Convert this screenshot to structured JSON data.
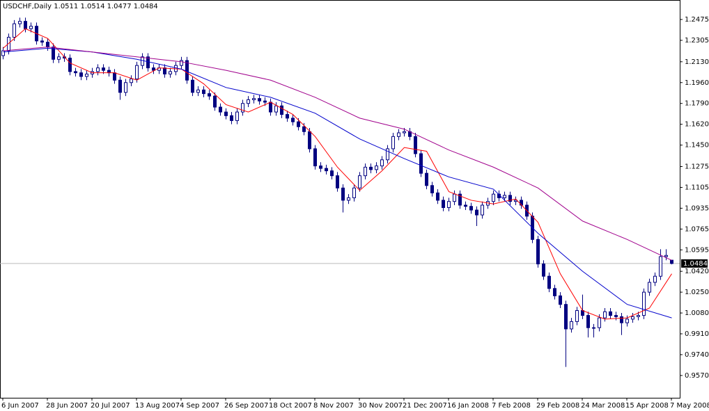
{
  "chart_data": {
    "type": "candlestick",
    "title": "USDCHF,Daily  1.0511 1.0514 1.0477 1.0484",
    "categories": [
      "6 Jun 2007",
      null,
      null,
      null,
      null,
      null,
      null,
      null,
      "28 Jun 2007",
      null,
      null,
      null,
      null,
      null,
      null,
      null,
      "20 Jul 2007",
      null,
      null,
      null,
      null,
      null,
      null,
      null,
      "13 Aug 2007",
      null,
      null,
      null,
      null,
      null,
      null,
      null,
      "4 Sep 2007",
      null,
      null,
      null,
      null,
      null,
      null,
      null,
      "26 Sep 2007",
      null,
      null,
      null,
      null,
      null,
      null,
      null,
      "18 Oct 2007",
      null,
      null,
      null,
      null,
      null,
      null,
      null,
      "8 Nov 2007",
      null,
      null,
      null,
      null,
      null,
      null,
      null,
      "30 Nov 2007",
      null,
      null,
      null,
      null,
      null,
      null,
      null,
      "21 Dec 2007",
      null,
      null,
      null,
      null,
      null,
      null,
      null,
      "16 Jan 2008",
      null,
      null,
      null,
      null,
      null,
      null,
      null,
      "7 Feb 2008",
      null,
      null,
      null,
      null,
      null,
      null,
      null,
      "29 Feb 2008",
      null,
      null,
      null,
      null,
      null,
      null,
      null,
      "24 Mar 2008",
      null,
      null,
      null,
      null,
      null,
      null,
      null,
      "15 Apr 2008",
      null,
      null,
      null,
      null,
      null,
      null,
      null,
      "7 May 2008"
    ],
    "open": [
      1.218,
      1.222,
      1.233,
      1.244,
      1.246,
      1.24,
      1.242,
      1.23,
      1.229,
      1.225,
      1.215,
      1.217,
      1.216,
      1.205,
      1.204,
      1.201,
      1.203,
      1.205,
      1.208,
      1.206,
      1.204,
      1.198,
      1.188,
      1.196,
      1.199,
      1.21,
      1.217,
      1.208,
      1.206,
      1.208,
      1.203,
      1.205,
      1.21,
      1.214,
      1.198,
      1.188,
      1.19,
      1.187,
      1.185,
      1.176,
      1.172,
      1.169,
      1.165,
      1.172,
      1.179,
      1.182,
      1.183,
      1.181,
      1.18,
      1.172,
      1.177,
      1.17,
      1.167,
      1.164,
      1.16,
      1.156,
      1.142,
      1.128,
      1.126,
      1.124,
      1.12,
      1.11,
      1.1,
      1.102,
      1.11,
      1.12,
      1.127,
      1.125,
      1.128,
      1.133,
      1.142,
      1.152,
      1.155,
      1.156,
      1.152,
      1.138,
      1.122,
      1.112,
      1.106,
      1.1,
      1.094,
      1.099,
      1.105,
      1.096,
      1.095,
      1.092,
      1.088,
      1.096,
      1.099,
      1.105,
      1.102,
      1.104,
      1.099,
      1.1,
      1.096,
      1.087,
      1.068,
      1.048,
      1.038,
      1.028,
      1.022,
      1.015,
      0.995,
      1.001,
      1.01,
      1.006,
      0.996,
      0.996,
      1.004,
      1.009,
      1.006,
      1.005,
      1.0,
      1.003,
      1.005,
      1.006,
      1.025,
      1.033,
      1.038,
      1.054,
      1.0511
    ],
    "high": [
      1.225,
      1.236,
      1.247,
      1.249,
      1.249,
      1.245,
      1.245,
      1.233,
      1.232,
      1.228,
      1.22,
      1.22,
      1.219,
      1.208,
      1.207,
      1.206,
      1.208,
      1.211,
      1.211,
      1.209,
      1.207,
      1.201,
      1.199,
      1.202,
      1.213,
      1.22,
      1.22,
      1.211,
      1.211,
      1.211,
      1.208,
      1.213,
      1.217,
      1.217,
      1.201,
      1.193,
      1.193,
      1.19,
      1.188,
      1.179,
      1.175,
      1.172,
      1.175,
      1.182,
      1.185,
      1.186,
      1.186,
      1.184,
      1.183,
      1.18,
      1.18,
      1.173,
      1.17,
      1.167,
      1.163,
      1.159,
      1.145,
      1.131,
      1.129,
      1.127,
      1.123,
      1.113,
      1.105,
      1.113,
      1.123,
      1.13,
      1.13,
      1.131,
      1.136,
      1.145,
      1.155,
      1.158,
      1.159,
      1.159,
      1.155,
      1.141,
      1.125,
      1.115,
      1.109,
      1.103,
      1.102,
      1.108,
      1.108,
      1.099,
      1.098,
      1.095,
      1.099,
      1.102,
      1.108,
      1.108,
      1.107,
      1.107,
      1.103,
      1.103,
      1.099,
      1.09,
      1.071,
      1.051,
      1.041,
      1.031,
      1.025,
      1.018,
      1.004,
      1.013,
      1.023,
      1.009,
      0.999,
      1.007,
      1.012,
      1.012,
      1.009,
      1.008,
      1.006,
      1.008,
      1.009,
      1.028,
      1.036,
      1.041,
      1.06,
      1.06,
      1.0514
    ],
    "low": [
      1.215,
      1.219,
      1.23,
      1.241,
      1.237,
      1.237,
      1.227,
      1.226,
      1.222,
      1.212,
      1.212,
      1.213,
      1.202,
      1.201,
      1.198,
      1.198,
      1.2,
      1.202,
      1.203,
      1.201,
      1.195,
      1.182,
      1.185,
      1.193,
      1.196,
      1.207,
      1.205,
      1.203,
      1.203,
      1.2,
      1.2,
      1.202,
      1.207,
      1.195,
      1.185,
      1.185,
      1.184,
      1.182,
      1.173,
      1.169,
      1.166,
      1.162,
      1.162,
      1.169,
      1.176,
      1.179,
      1.178,
      1.177,
      1.169,
      1.169,
      1.167,
      1.164,
      1.161,
      1.157,
      1.153,
      1.139,
      1.125,
      1.123,
      1.121,
      1.117,
      1.107,
      1.09,
      1.097,
      1.099,
      1.107,
      1.117,
      1.122,
      1.122,
      1.125,
      1.13,
      1.139,
      1.149,
      1.152,
      1.149,
      1.135,
      1.119,
      1.109,
      1.103,
      1.097,
      1.091,
      1.091,
      1.096,
      1.093,
      1.092,
      1.089,
      1.079,
      1.085,
      1.093,
      1.096,
      1.099,
      1.099,
      1.096,
      1.096,
      1.093,
      1.084,
      1.065,
      1.045,
      1.035,
      1.025,
      1.019,
      1.012,
      0.964,
      0.992,
      0.998,
      1.003,
      0.988,
      0.988,
      0.993,
      1.001,
      1.003,
      1.002,
      0.99,
      0.997,
      1.0,
      1.002,
      1.003,
      1.022,
      1.03,
      1.035,
      1.051,
      1.0477
    ],
    "close": [
      1.222,
      1.233,
      1.244,
      1.246,
      1.24,
      1.242,
      1.23,
      1.229,
      1.225,
      1.215,
      1.217,
      1.216,
      1.205,
      1.204,
      1.201,
      1.203,
      1.205,
      1.208,
      1.206,
      1.204,
      1.198,
      1.188,
      1.196,
      1.199,
      1.21,
      1.217,
      1.208,
      1.206,
      1.208,
      1.203,
      1.205,
      1.21,
      1.214,
      1.198,
      1.188,
      1.19,
      1.187,
      1.185,
      1.176,
      1.172,
      1.169,
      1.165,
      1.172,
      1.179,
      1.182,
      1.183,
      1.181,
      1.18,
      1.172,
      1.177,
      1.17,
      1.167,
      1.164,
      1.16,
      1.156,
      1.142,
      1.128,
      1.126,
      1.124,
      1.12,
      1.11,
      1.1,
      1.102,
      1.11,
      1.12,
      1.127,
      1.125,
      1.128,
      1.133,
      1.142,
      1.152,
      1.155,
      1.156,
      1.152,
      1.138,
      1.122,
      1.112,
      1.106,
      1.1,
      1.094,
      1.099,
      1.105,
      1.096,
      1.095,
      1.092,
      1.088,
      1.096,
      1.099,
      1.105,
      1.102,
      1.104,
      1.099,
      1.1,
      1.096,
      1.087,
      1.068,
      1.048,
      1.038,
      1.028,
      1.022,
      1.015,
      0.995,
      1.001,
      1.01,
      1.006,
      0.996,
      0.996,
      1.004,
      1.009,
      1.006,
      1.005,
      1.0,
      1.003,
      1.005,
      1.006,
      1.025,
      1.033,
      1.038,
      1.054,
      1.055,
      1.0484
    ],
    "color": "#000080",
    "lines": [
      {
        "color": "#ff0000",
        "x": [
          0,
          4,
          8,
          12,
          16,
          20,
          24,
          28,
          32,
          36,
          40,
          44,
          48,
          52,
          56,
          60,
          64,
          68,
          72,
          76,
          80,
          84,
          88,
          92,
          96,
          100,
          104,
          108,
          112,
          116,
          120
        ],
        "values": [
          1.224,
          1.24,
          1.232,
          1.212,
          1.204,
          1.204,
          1.198,
          1.208,
          1.207,
          1.195,
          1.178,
          1.172,
          1.18,
          1.17,
          1.152,
          1.127,
          1.108,
          1.124,
          1.143,
          1.14,
          1.107,
          1.1,
          1.097,
          1.101,
          1.082,
          1.04,
          1.01,
          1.003,
          1.004,
          1.012,
          1.04
        ]
      },
      {
        "color": "#0000cc",
        "x": [
          0,
          8,
          16,
          24,
          32,
          40,
          48,
          56,
          64,
          72,
          80,
          88,
          96,
          104,
          112,
          120
        ],
        "values": [
          1.221,
          1.224,
          1.221,
          1.215,
          1.207,
          1.192,
          1.184,
          1.171,
          1.15,
          1.134,
          1.119,
          1.109,
          1.073,
          1.042,
          1.015,
          1.004
        ]
      },
      {
        "color": "#a0008c",
        "x": [
          0,
          8,
          16,
          24,
          32,
          40,
          48,
          56,
          64,
          72,
          80,
          88,
          96,
          104,
          112,
          120
        ],
        "values": [
          1.222,
          1.225,
          1.221,
          1.217,
          1.213,
          1.206,
          1.198,
          1.184,
          1.167,
          1.158,
          1.141,
          1.127,
          1.11,
          1.083,
          1.068,
          1.051
        ]
      }
    ],
    "last_price": 1.0484,
    "ylim": [
      0.9388,
      1.2634
    ],
    "yticks": [
      1.2475,
      1.2305,
      {
        "value": 1.213,
        "label": "1.2130"
      },
      {
        "value": 1.196,
        "label": "1.1960"
      },
      {
        "value": 1.179,
        "label": "1.1790"
      },
      {
        "value": 1.162,
        "label": "1.1620"
      },
      {
        "value": 1.145,
        "label": "1.1450"
      },
      1.1275,
      1.1105,
      1.0935,
      1.0765,
      1.0595,
      {
        "value": 1.042,
        "label": "1.0420"
      },
      {
        "value": 1.025,
        "label": "1.0250"
      },
      {
        "value": 1.008,
        "label": "1.0080"
      },
      {
        "value": 0.991,
        "label": "0.9910"
      },
      {
        "value": 0.974,
        "label": "0.9740"
      },
      {
        "value": 0.957,
        "label": "0.9570"
      }
    ]
  }
}
